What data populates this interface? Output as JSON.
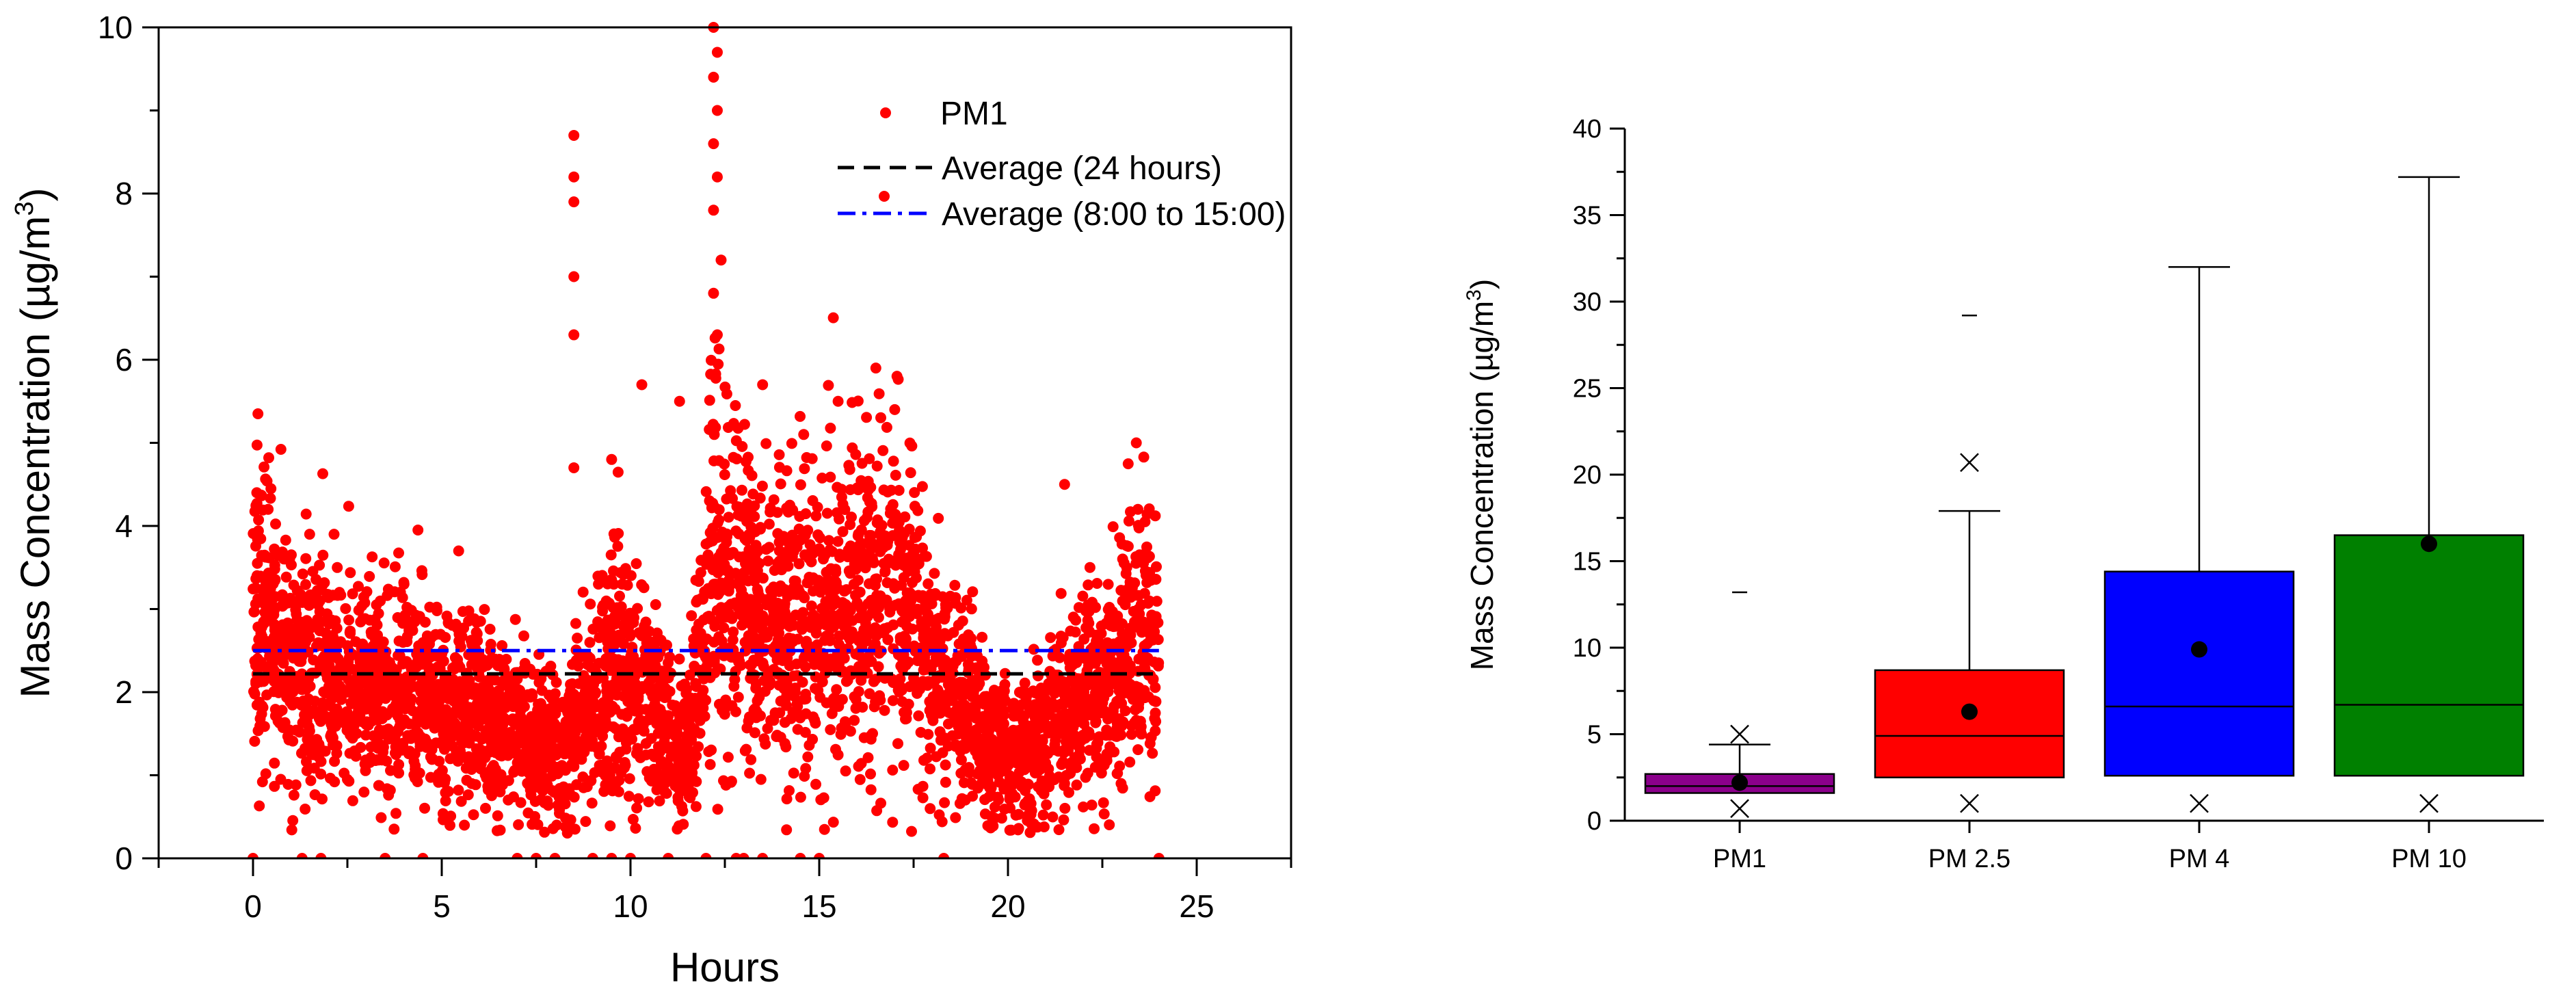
{
  "chart_data": [
    {
      "type": "scatter",
      "title": "",
      "xlabel": "Hours",
      "ylabel": "Mass Concentration (µg/m³)",
      "ylabel_main": "Mass Concentration (µg/m",
      "ylabel_sup": "3",
      "ylabel_close": ")",
      "xlim": [
        -2.5,
        27.5
      ],
      "ylim": [
        0,
        10
      ],
      "xticks": [
        0,
        5,
        10,
        15,
        20,
        25
      ],
      "yticks": [
        0,
        2,
        4,
        6,
        8,
        10
      ],
      "legend": {
        "position": "top-right",
        "entries": [
          "PM1",
          "Average (24 hours)",
          "Average (8:00 to 15:00)"
        ]
      },
      "series": [
        {
          "name": "PM1",
          "color": "#ff0000",
          "trend": [
            [
              0,
              3.2
            ],
            [
              0.5,
              2.7
            ],
            [
              1,
              2.4
            ],
            [
              2,
              2.2
            ],
            [
              3,
              2.1
            ],
            [
              4,
              2.0
            ],
            [
              5,
              1.9
            ],
            [
              6,
              1.7
            ],
            [
              7,
              1.5
            ],
            [
              7.8,
              1.3
            ],
            [
              8.2,
              1.2
            ],
            [
              8.6,
              1.6
            ],
            [
              9.0,
              1.8
            ],
            [
              9.5,
              2.4
            ],
            [
              10.0,
              2.0
            ],
            [
              10.5,
              1.9
            ],
            [
              11.0,
              1.6
            ],
            [
              11.4,
              1.1
            ],
            [
              11.8,
              2.2
            ],
            [
              12.2,
              3.6
            ],
            [
              13,
              3.0
            ],
            [
              14,
              2.8
            ],
            [
              15,
              2.9
            ],
            [
              16,
              3.2
            ],
            [
              17,
              3.3
            ],
            [
              17.5,
              2.9
            ],
            [
              18,
              2.3
            ],
            [
              18.5,
              2.1
            ],
            [
              19,
              1.9
            ],
            [
              19.5,
              1.3
            ],
            [
              20,
              1.2
            ],
            [
              20.5,
              1.3
            ],
            [
              21,
              1.6
            ],
            [
              21.5,
              1.8
            ],
            [
              22,
              1.9
            ],
            [
              22.5,
              2.0
            ],
            [
              23,
              2.4
            ],
            [
              23.5,
              3.0
            ],
            [
              24,
              2.2
            ]
          ],
          "peaks": [
            [
              0.1,
              4.4
            ],
            [
              0.4,
              4.2
            ],
            [
              1.5,
              3.9
            ],
            [
              4,
              3.3
            ],
            [
              8.5,
              8.7
            ],
            [
              8.5,
              8.2
            ],
            [
              8.5,
              7.9
            ],
            [
              8.5,
              7.0
            ],
            [
              8.5,
              6.3
            ],
            [
              8.5,
              4.7
            ],
            [
              9.5,
              4.8
            ],
            [
              10.3,
              5.7
            ],
            [
              11.3,
              5.5
            ],
            [
              12.2,
              10
            ],
            [
              12.3,
              9.7
            ],
            [
              12.2,
              9.4
            ],
            [
              12.3,
              9.0
            ],
            [
              12.2,
              8.6
            ],
            [
              12.3,
              8.2
            ],
            [
              12.2,
              7.8
            ],
            [
              12.4,
              7.2
            ],
            [
              12.2,
              6.8
            ],
            [
              12.3,
              6.3
            ],
            [
              13.5,
              5.7
            ],
            [
              15.5,
              5.5
            ],
            [
              16.5,
              5.9
            ],
            [
              17.0,
              5.4
            ],
            [
              21.5,
              4.5
            ],
            [
              23.4,
              5.0
            ]
          ],
          "zeros": [
            0,
            1.3,
            1.8,
            3.5,
            4.5,
            7.0,
            7.5,
            8.0,
            9.0,
            9.5,
            10.0,
            11.0,
            12.0,
            12.8,
            13.0,
            13.5,
            14.5,
            15.0,
            18.3,
            24.0
          ]
        },
        {
          "name": "Average (24 hours)",
          "style": "dash",
          "color": "#000000",
          "y": 2.22,
          "x": [
            0,
            24
          ]
        },
        {
          "name": "Average (8:00 to 15:00)",
          "style": "dashdot",
          "color": "#0000ff",
          "y": 2.5,
          "x": [
            0,
            24
          ]
        }
      ]
    },
    {
      "type": "box",
      "title": "",
      "xlabel": "",
      "ylabel": "Mass Concentration (µg/m³)",
      "ylabel_main": "Mass Concentration (µg/m",
      "ylabel_sup": "3",
      "ylabel_close": ")",
      "ylim": [
        0,
        40
      ],
      "yticks": [
        0,
        5,
        10,
        15,
        20,
        25,
        30,
        35,
        40
      ],
      "categories": [
        "PM1",
        "PM 2.5",
        "PM 4",
        "PM 10"
      ],
      "boxes": [
        {
          "name": "PM1",
          "color": "#8b008b",
          "q1": 1.6,
          "median": 2.0,
          "q3": 2.7,
          "mean": 2.2,
          "whisker_low": 1.6,
          "whisker_high": 4.4,
          "x_high": 5.0,
          "x_low": 0.7,
          "max_mark": 13.2
        },
        {
          "name": "PM 2.5",
          "color": "#ff0000",
          "q1": 2.5,
          "median": 4.9,
          "q3": 8.7,
          "mean": 6.3,
          "whisker_low": 2.5,
          "whisker_high": 17.9,
          "x_high": 20.7,
          "x_low": 1.0,
          "max_mark": 29.2
        },
        {
          "name": "PM 4",
          "color": "#0000ff",
          "q1": 2.6,
          "median": 6.6,
          "q3": 14.4,
          "mean": 9.9,
          "whisker_low": 2.6,
          "whisker_high": 32.0,
          "x_high": null,
          "x_low": 1.0,
          "max_mark": null
        },
        {
          "name": "PM 10",
          "color": "#008000",
          "q1": 2.6,
          "median": 6.7,
          "q3": 16.5,
          "mean": 16.0,
          "whisker_low": 2.6,
          "whisker_high": 37.2,
          "x_high": null,
          "x_low": 1.0,
          "max_mark": null
        }
      ]
    }
  ]
}
